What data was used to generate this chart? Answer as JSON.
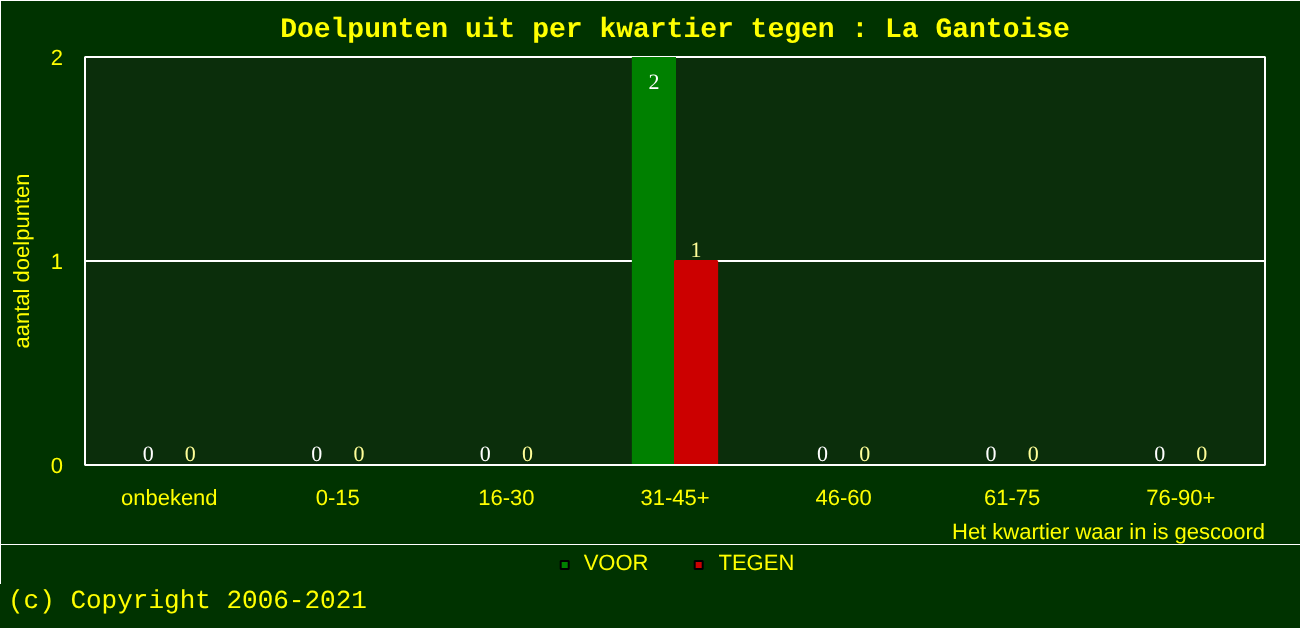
{
  "chart_data": {
    "type": "bar",
    "title": "Doelpunten uit per kwartier tegen : La Gantoise",
    "xlabel": "Het kwartier waar in is gescoord",
    "ylabel": "aantal doelpunten",
    "categories": [
      "onbekend",
      "0-15",
      "16-30",
      "31-45+",
      "46-60",
      "61-75",
      "76-90+"
    ],
    "series": [
      {
        "name": "VOOR",
        "color": "#008000",
        "values": [
          0,
          0,
          0,
          2,
          0,
          0,
          0
        ]
      },
      {
        "name": "TEGEN",
        "color": "#cc0000",
        "values": [
          0,
          0,
          0,
          1,
          0,
          0,
          0
        ]
      }
    ],
    "ylim": [
      0,
      2
    ],
    "yticks": [
      0,
      1,
      2
    ],
    "grid": "y",
    "legend": "bottom",
    "data_labels": true,
    "annotations": [
      "(c) Copyright 2006-2021"
    ]
  }
}
